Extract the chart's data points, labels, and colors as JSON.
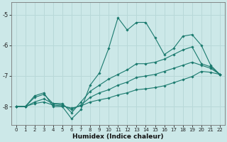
{
  "xlabel": "Humidex (Indice chaleur)",
  "background_color": "#cce8e8",
  "grid_color": "#b8d8d8",
  "line_color": "#1a7a6e",
  "x_min": -0.5,
  "x_max": 22.5,
  "y_min": -8.6,
  "y_max": -4.6,
  "yticks": [
    -8,
    -7,
    -6,
    -5
  ],
  "xticks": [
    0,
    1,
    2,
    3,
    4,
    5,
    6,
    7,
    8,
    9,
    10,
    11,
    12,
    13,
    14,
    15,
    16,
    17,
    18,
    19,
    20,
    21,
    22
  ],
  "series1_x": [
    0,
    1,
    2,
    3,
    4,
    5,
    6,
    7,
    8,
    9,
    10,
    11,
    12,
    13,
    14,
    15,
    16,
    17,
    18,
    19,
    20,
    21,
    22
  ],
  "series1_y": [
    -8.0,
    -8.0,
    -7.65,
    -7.55,
    -8.0,
    -8.0,
    -8.4,
    -8.1,
    -7.3,
    -6.9,
    -6.1,
    -5.1,
    -5.5,
    -5.25,
    -5.25,
    -5.75,
    -6.3,
    -6.1,
    -5.7,
    -5.65,
    -6.0,
    -6.65,
    -6.95
  ],
  "series2_x": [
    0,
    1,
    2,
    3,
    4,
    5,
    6,
    7,
    8,
    9,
    10,
    11,
    12,
    13,
    14,
    15,
    16,
    17,
    18,
    19,
    20,
    21,
    22
  ],
  "series2_y": [
    -8.0,
    -8.0,
    -7.7,
    -7.6,
    -7.9,
    -7.9,
    -8.2,
    -7.85,
    -7.5,
    -7.3,
    -7.1,
    -6.95,
    -6.8,
    -6.6,
    -6.6,
    -6.55,
    -6.45,
    -6.3,
    -6.15,
    -6.05,
    -6.6,
    -6.7,
    -6.95
  ],
  "series3_x": [
    0,
    1,
    2,
    3,
    4,
    5,
    6,
    7,
    8,
    9,
    10,
    11,
    12,
    13,
    14,
    15,
    16,
    17,
    18,
    19,
    20,
    21,
    22
  ],
  "series3_y": [
    -8.0,
    -8.0,
    -7.85,
    -7.75,
    -7.9,
    -7.95,
    -8.1,
    -7.95,
    -7.7,
    -7.55,
    -7.45,
    -7.3,
    -7.2,
    -7.05,
    -7.0,
    -6.95,
    -6.85,
    -6.75,
    -6.65,
    -6.55,
    -6.65,
    -6.75,
    -6.95
  ],
  "series4_x": [
    0,
    1,
    2,
    3,
    4,
    5,
    6,
    7,
    8,
    9,
    10,
    11,
    12,
    13,
    14,
    15,
    16,
    17,
    18,
    19,
    20,
    21,
    22
  ],
  "series4_y": [
    -8.0,
    -8.0,
    -7.9,
    -7.85,
    -7.95,
    -7.98,
    -8.05,
    -7.98,
    -7.85,
    -7.78,
    -7.72,
    -7.62,
    -7.55,
    -7.45,
    -7.42,
    -7.38,
    -7.32,
    -7.22,
    -7.12,
    -7.02,
    -6.85,
    -6.88,
    -6.95
  ]
}
